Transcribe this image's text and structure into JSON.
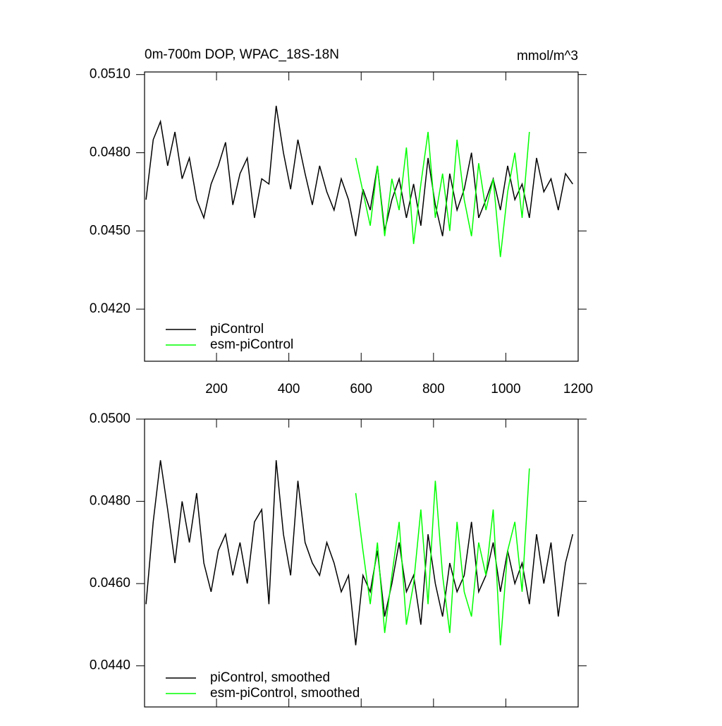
{
  "chart_data": [
    {
      "type": "line",
      "title": "0m-700m DOP, WPAC_18S-18N",
      "units": "mmol/m^3",
      "x": [
        5,
        25,
        45,
        65,
        85,
        105,
        125,
        145,
        165,
        185,
        205,
        225,
        245,
        265,
        285,
        305,
        325,
        345,
        365,
        385,
        405,
        425,
        445,
        465,
        485,
        505,
        525,
        545,
        565,
        585,
        605,
        625,
        645,
        665,
        685,
        705,
        725,
        745,
        765,
        785,
        805,
        825,
        845,
        865,
        885,
        905,
        925,
        945,
        965,
        985,
        1005,
        1025,
        1045,
        1065,
        1085,
        1105,
        1125,
        1145,
        1165,
        1185
      ],
      "series": [
        {
          "name": "piControl",
          "color": "#000000",
          "values": [
            0.0462,
            0.0485,
            0.0492,
            0.0475,
            0.0488,
            0.047,
            0.0478,
            0.0462,
            0.0455,
            0.0468,
            0.0475,
            0.0484,
            0.046,
            0.0472,
            0.0478,
            0.0455,
            0.047,
            0.0468,
            0.0498,
            0.048,
            0.0466,
            0.0485,
            0.0472,
            0.046,
            0.0475,
            0.0465,
            0.0458,
            0.047,
            0.0462,
            0.0448,
            0.0466,
            0.0458,
            0.0475,
            0.045,
            0.0462,
            0.047,
            0.0455,
            0.0468,
            0.0452,
            0.0478,
            0.046,
            0.0448,
            0.0472,
            0.0458,
            0.0466,
            0.048,
            0.0455,
            0.0462,
            0.047,
            0.0458,
            0.0475,
            0.0462,
            0.0468,
            0.0455,
            0.0478,
            0.0465,
            0.047,
            0.0458,
            0.0472,
            0.0468
          ]
        },
        {
          "name": "esm-piControl",
          "color": "#00ff00",
          "values": [
            null,
            null,
            null,
            null,
            null,
            null,
            null,
            null,
            null,
            null,
            null,
            null,
            null,
            null,
            null,
            null,
            null,
            null,
            null,
            null,
            null,
            null,
            null,
            null,
            null,
            null,
            null,
            null,
            null,
            0.0478,
            0.0465,
            0.0452,
            0.0475,
            0.0448,
            0.047,
            0.0458,
            0.0482,
            0.0445,
            0.0468,
            0.0488,
            0.0455,
            0.0472,
            0.045,
            0.0485,
            0.0462,
            0.0448,
            0.0476,
            0.0458,
            0.047,
            0.044,
            0.0465,
            0.048,
            0.0455,
            0.0488,
            null,
            null,
            null,
            null,
            null,
            null
          ]
        }
      ],
      "xlim": [
        1,
        1200
      ],
      "xticks": [
        200,
        400,
        600,
        800,
        1000,
        1200
      ],
      "ylim": [
        0.04,
        0.0511
      ],
      "yticks": [
        {
          "value": 0.042,
          "label": "0.0420"
        },
        {
          "value": 0.045,
          "label": "0.0450"
        },
        {
          "value": 0.048,
          "label": "0.0480"
        },
        {
          "value": 0.051,
          "label": "0.0510"
        }
      ]
    },
    {
      "type": "line",
      "x": [
        5,
        25,
        45,
        65,
        85,
        105,
        125,
        145,
        165,
        185,
        205,
        225,
        245,
        265,
        285,
        305,
        325,
        345,
        365,
        385,
        405,
        425,
        445,
        465,
        485,
        505,
        525,
        545,
        565,
        585,
        605,
        625,
        645,
        665,
        685,
        705,
        725,
        745,
        765,
        785,
        805,
        825,
        845,
        865,
        885,
        905,
        925,
        945,
        965,
        985,
        1005,
        1025,
        1045,
        1065,
        1085,
        1105,
        1125,
        1145,
        1165,
        1185
      ],
      "series": [
        {
          "name": "piControl, smoothed",
          "color": "#000000",
          "values": [
            0.0455,
            0.0475,
            0.049,
            0.0478,
            0.0465,
            0.048,
            0.047,
            0.0482,
            0.0465,
            0.0458,
            0.0468,
            0.0472,
            0.0462,
            0.047,
            0.046,
            0.0475,
            0.0478,
            0.0455,
            0.049,
            0.0472,
            0.0462,
            0.0485,
            0.047,
            0.0465,
            0.0462,
            0.047,
            0.0465,
            0.0458,
            0.0462,
            0.0445,
            0.0462,
            0.0458,
            0.0468,
            0.0452,
            0.046,
            0.047,
            0.0458,
            0.0462,
            0.045,
            0.0472,
            0.046,
            0.0452,
            0.0465,
            0.0458,
            0.0462,
            0.0475,
            0.0458,
            0.0462,
            0.047,
            0.0458,
            0.0468,
            0.046,
            0.0465,
            0.0455,
            0.0472,
            0.046,
            0.047,
            0.0452,
            0.0465,
            0.0472
          ]
        },
        {
          "name": "esm-piControl, smoothed",
          "color": "#00ff00",
          "values": [
            null,
            null,
            null,
            null,
            null,
            null,
            null,
            null,
            null,
            null,
            null,
            null,
            null,
            null,
            null,
            null,
            null,
            null,
            null,
            null,
            null,
            null,
            null,
            null,
            null,
            null,
            null,
            null,
            null,
            0.0482,
            0.0468,
            0.0455,
            0.047,
            0.0448,
            0.0462,
            0.0475,
            0.045,
            0.046,
            0.0478,
            0.0455,
            0.0485,
            0.0462,
            0.0448,
            0.0475,
            0.0458,
            0.0452,
            0.047,
            0.0462,
            0.0478,
            0.0445,
            0.0468,
            0.0475,
            0.0458,
            0.0488,
            null,
            null,
            null,
            null,
            null,
            null
          ]
        }
      ],
      "xlim": [
        1,
        1200
      ],
      "xticks": [
        200,
        400,
        600,
        800,
        1000,
        1200
      ],
      "ylim": [
        0.043,
        0.05
      ],
      "yticks": [
        {
          "value": 0.044,
          "label": "0.0440"
        },
        {
          "value": 0.046,
          "label": "0.0460"
        },
        {
          "value": 0.048,
          "label": "0.0480"
        },
        {
          "value": 0.05,
          "label": "0.0500"
        }
      ]
    }
  ]
}
